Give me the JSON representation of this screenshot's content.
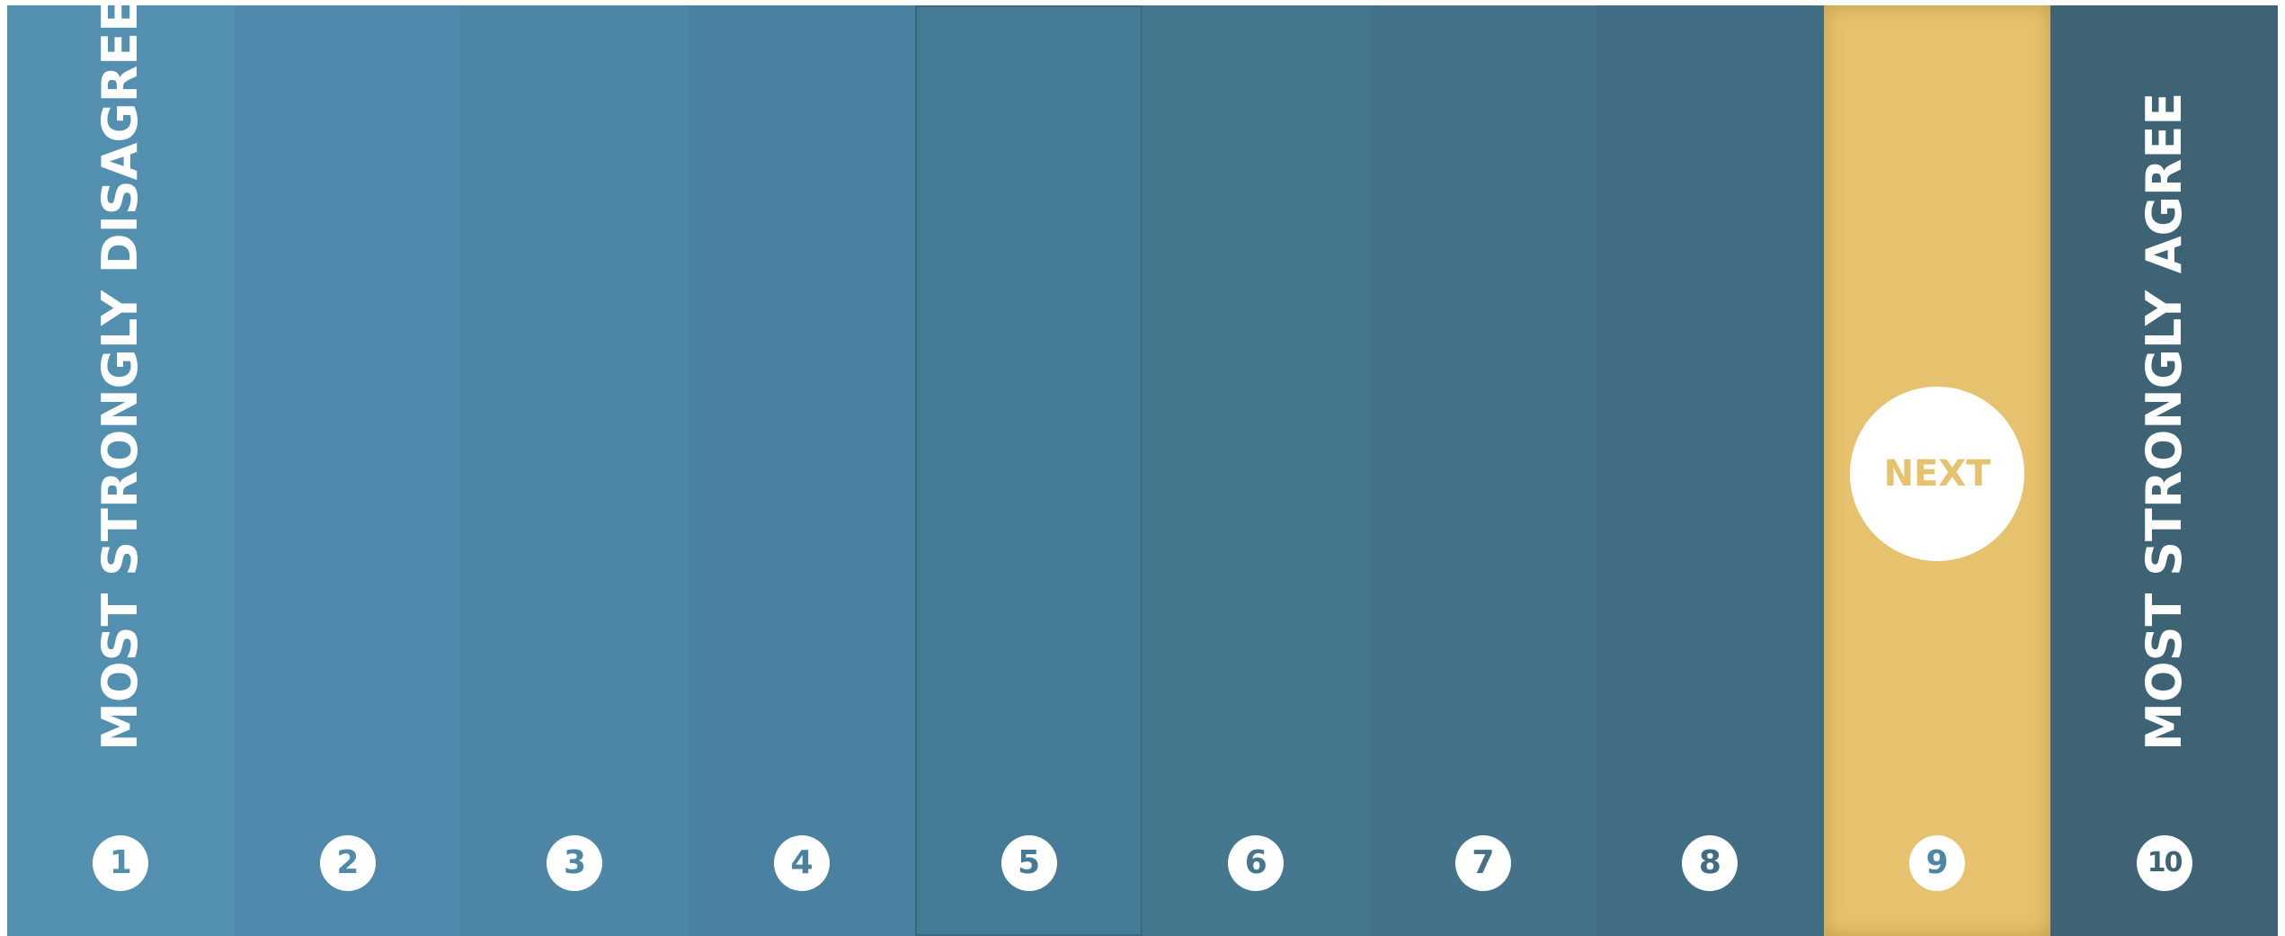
{
  "scale": {
    "left_label": "MOST STRONGLY DISAGREE",
    "right_label": "MOST STRONGLY AGREE",
    "next_label": "NEXT",
    "selected_value": 9,
    "colors": {
      "selected": "#e6c26e",
      "next_text": "#e6c26e",
      "label_text": "#ffffff",
      "number_circle": "#ffffff"
    },
    "options": [
      {
        "label": "1",
        "color": "#5390b0"
      },
      {
        "label": "2",
        "color": "#5089ab"
      },
      {
        "label": "3",
        "color": "#4e86a6"
      },
      {
        "label": "4",
        "color": "#4a81a0"
      },
      {
        "label": "5",
        "color": "#467b97"
      },
      {
        "label": "6",
        "color": "#45778f"
      },
      {
        "label": "7",
        "color": "#43728a"
      },
      {
        "label": "8",
        "color": "#416d84"
      },
      {
        "label": "9",
        "color": "#e6c26e"
      },
      {
        "label": "10",
        "color": "#3d6375"
      }
    ]
  }
}
